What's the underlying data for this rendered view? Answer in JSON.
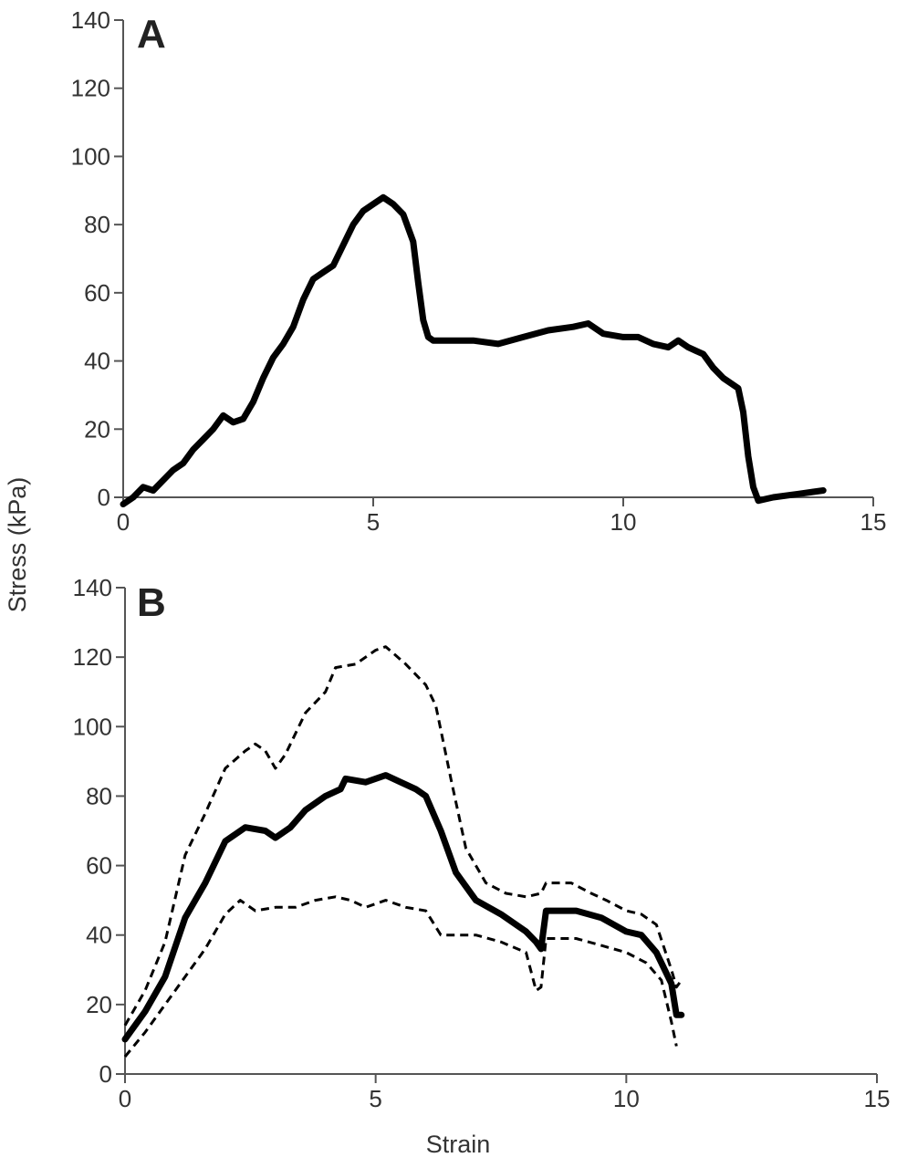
{
  "chart_data": [
    {
      "type": "line",
      "panel_label": "A",
      "xlim": [
        0,
        15
      ],
      "ylim": [
        0,
        140
      ],
      "x_ticks": [
        "0",
        "5",
        "10",
        "15"
      ],
      "y_ticks": [
        "0",
        "20",
        "40",
        "60",
        "80",
        "100",
        "120",
        "140"
      ],
      "grid": false,
      "series": [
        {
          "style": "solid-thick",
          "color": "#000000",
          "points": [
            [
              0,
              -2
            ],
            [
              0.2,
              0
            ],
            [
              0.4,
              3
            ],
            [
              0.6,
              2
            ],
            [
              0.8,
              5
            ],
            [
              1.0,
              8
            ],
            [
              1.2,
              10
            ],
            [
              1.4,
              14
            ],
            [
              1.6,
              17
            ],
            [
              1.8,
              20
            ],
            [
              2.0,
              24
            ],
            [
              2.2,
              22
            ],
            [
              2.4,
              23
            ],
            [
              2.6,
              28
            ],
            [
              2.8,
              35
            ],
            [
              3.0,
              41
            ],
            [
              3.2,
              45
            ],
            [
              3.4,
              50
            ],
            [
              3.6,
              58
            ],
            [
              3.8,
              64
            ],
            [
              4.0,
              66
            ],
            [
              4.2,
              68
            ],
            [
              4.4,
              74
            ],
            [
              4.6,
              80
            ],
            [
              4.8,
              84
            ],
            [
              5.0,
              86
            ],
            [
              5.2,
              88
            ],
            [
              5.4,
              86
            ],
            [
              5.6,
              83
            ],
            [
              5.8,
              75
            ],
            [
              5.9,
              63
            ],
            [
              6.0,
              52
            ],
            [
              6.1,
              47
            ],
            [
              6.2,
              46
            ],
            [
              6.5,
              46
            ],
            [
              7.0,
              46
            ],
            [
              7.5,
              45
            ],
            [
              8.0,
              47
            ],
            [
              8.5,
              49
            ],
            [
              9.0,
              50
            ],
            [
              9.3,
              51
            ],
            [
              9.6,
              48
            ],
            [
              10.0,
              47
            ],
            [
              10.3,
              47
            ],
            [
              10.6,
              45
            ],
            [
              10.9,
              44
            ],
            [
              11.1,
              46
            ],
            [
              11.3,
              44
            ],
            [
              11.6,
              42
            ],
            [
              11.8,
              38
            ],
            [
              12.0,
              35
            ],
            [
              12.3,
              32
            ],
            [
              12.4,
              25
            ],
            [
              12.5,
              12
            ],
            [
              12.6,
              3
            ],
            [
              12.7,
              -1
            ],
            [
              13.0,
              0
            ],
            [
              13.5,
              1
            ],
            [
              14.0,
              2
            ]
          ]
        }
      ]
    },
    {
      "type": "line",
      "panel_label": "B",
      "xlim": [
        0,
        15
      ],
      "ylim": [
        0,
        140
      ],
      "x_ticks": [
        "0",
        "5",
        "10",
        "15"
      ],
      "y_ticks": [
        "0",
        "20",
        "40",
        "60",
        "80",
        "100",
        "120",
        "140"
      ],
      "xlabel": "Strain",
      "ylabel": "Stress (kPa)",
      "grid": false,
      "series": [
        {
          "style": "solid-thick",
          "color": "#000000",
          "points": [
            [
              0,
              10
            ],
            [
              0.4,
              18
            ],
            [
              0.8,
              28
            ],
            [
              1.2,
              45
            ],
            [
              1.6,
              55
            ],
            [
              2.0,
              67
            ],
            [
              2.4,
              71
            ],
            [
              2.8,
              70
            ],
            [
              3.0,
              68
            ],
            [
              3.3,
              71
            ],
            [
              3.6,
              76
            ],
            [
              4.0,
              80
            ],
            [
              4.3,
              82
            ],
            [
              4.4,
              85
            ],
            [
              4.8,
              84
            ],
            [
              5.2,
              86
            ],
            [
              5.5,
              84
            ],
            [
              5.8,
              82
            ],
            [
              6.0,
              80
            ],
            [
              6.3,
              70
            ],
            [
              6.6,
              58
            ],
            [
              7.0,
              50
            ],
            [
              7.5,
              46
            ],
            [
              8.0,
              41
            ],
            [
              8.2,
              38
            ],
            [
              8.3,
              36
            ],
            [
              8.4,
              47
            ],
            [
              9.0,
              47
            ],
            [
              9.5,
              45
            ],
            [
              10.0,
              41
            ],
            [
              10.3,
              40
            ],
            [
              10.6,
              35
            ],
            [
              10.9,
              26
            ],
            [
              11.0,
              17
            ],
            [
              11.1,
              17
            ]
          ]
        },
        {
          "style": "dashed",
          "color": "#000000",
          "points": [
            [
              0,
              14
            ],
            [
              0.4,
              24
            ],
            [
              0.8,
              38
            ],
            [
              1.2,
              63
            ],
            [
              1.6,
              75
            ],
            [
              2.0,
              88
            ],
            [
              2.4,
              93
            ],
            [
              2.6,
              95
            ],
            [
              2.8,
              93
            ],
            [
              3.0,
              88
            ],
            [
              3.2,
              92
            ],
            [
              3.6,
              104
            ],
            [
              4.0,
              110
            ],
            [
              4.2,
              117
            ],
            [
              4.6,
              118
            ],
            [
              5.0,
              122
            ],
            [
              5.2,
              123
            ],
            [
              5.6,
              118
            ],
            [
              6.0,
              112
            ],
            [
              6.2,
              106
            ],
            [
              6.5,
              85
            ],
            [
              6.8,
              65
            ],
            [
              7.2,
              55
            ],
            [
              7.6,
              52
            ],
            [
              8.0,
              51
            ],
            [
              8.3,
              52
            ],
            [
              8.4,
              55
            ],
            [
              8.9,
              55
            ],
            [
              9.3,
              52
            ],
            [
              9.6,
              50
            ],
            [
              10.0,
              47
            ],
            [
              10.3,
              46
            ],
            [
              10.6,
              43
            ],
            [
              10.9,
              30
            ],
            [
              11.0,
              25
            ],
            [
              11.1,
              27
            ]
          ]
        },
        {
          "style": "dashed",
          "color": "#000000",
          "points": [
            [
              0,
              5
            ],
            [
              0.4,
              12
            ],
            [
              0.8,
              20
            ],
            [
              1.2,
              28
            ],
            [
              1.6,
              36
            ],
            [
              2.0,
              46
            ],
            [
              2.3,
              50
            ],
            [
              2.6,
              47
            ],
            [
              3.0,
              48
            ],
            [
              3.4,
              48
            ],
            [
              3.8,
              50
            ],
            [
              4.2,
              51
            ],
            [
              4.5,
              50
            ],
            [
              4.8,
              48
            ],
            [
              5.2,
              50
            ],
            [
              5.6,
              48
            ],
            [
              6.0,
              47
            ],
            [
              6.3,
              40
            ],
            [
              6.6,
              40
            ],
            [
              7.0,
              40
            ],
            [
              7.5,
              38
            ],
            [
              8.0,
              35
            ],
            [
              8.2,
              24
            ],
            [
              8.3,
              25
            ],
            [
              8.4,
              39
            ],
            [
              9.0,
              39
            ],
            [
              9.5,
              37
            ],
            [
              10.0,
              35
            ],
            [
              10.4,
              32
            ],
            [
              10.7,
              27
            ],
            [
              10.9,
              15
            ],
            [
              11.0,
              8
            ]
          ]
        }
      ]
    }
  ]
}
